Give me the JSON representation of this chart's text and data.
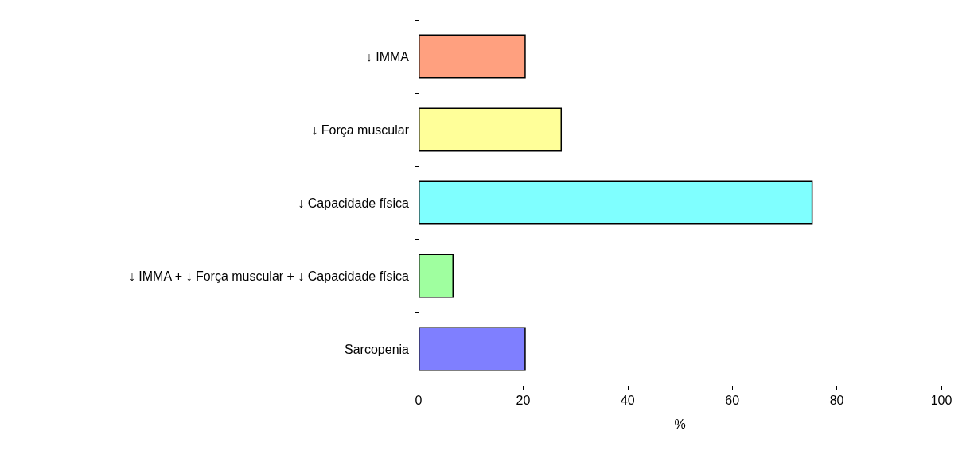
{
  "chart_data": {
    "type": "bar",
    "orientation": "horizontal",
    "xlabel": "%",
    "categories": [
      "↓ IMMA",
      "↓ Força muscular",
      "↓ Capacidade física",
      "↓ IMMA + ↓ Força muscular + ↓ Capacidade física",
      "Sarcopenia"
    ],
    "values": [
      20.5,
      27.4,
      75.4,
      6.7,
      20.5
    ],
    "colors": [
      "#ffa07f",
      "#ffff99",
      "#7fffff",
      "#9fff9f",
      "#7f7fff"
    ],
    "xlim": [
      0,
      100
    ],
    "xticks": [
      0,
      20,
      40,
      60,
      80,
      100
    ],
    "grid": false
  }
}
